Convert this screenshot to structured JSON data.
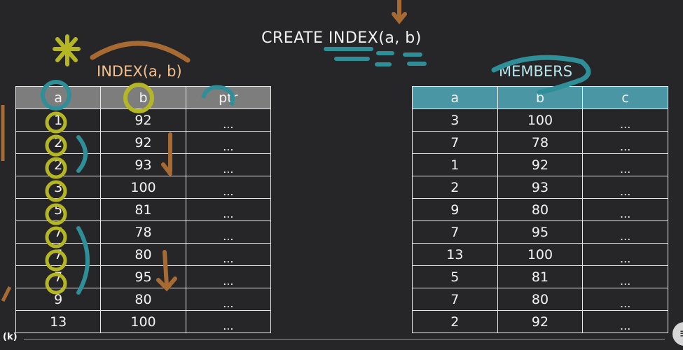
{
  "title": "CREATE INDEX(a, b)",
  "index_label": "INDEX(a, b)",
  "members_label": "MEMBERS",
  "index_table": {
    "headers": [
      "a",
      "b",
      "ptr"
    ],
    "rows": [
      [
        "1",
        "92",
        "..."
      ],
      [
        "2",
        "92",
        "..."
      ],
      [
        "2",
        "93",
        "..."
      ],
      [
        "3",
        "100",
        "..."
      ],
      [
        "5",
        "81",
        "..."
      ],
      [
        "7",
        "78",
        "..."
      ],
      [
        "7",
        "80",
        "..."
      ],
      [
        "7",
        "95",
        "..."
      ],
      [
        "9",
        "80",
        "..."
      ],
      [
        "13",
        "100",
        "..."
      ]
    ]
  },
  "members_table": {
    "headers": [
      "a",
      "b",
      "c"
    ],
    "rows": [
      [
        "3",
        "100",
        "..."
      ],
      [
        "7",
        "78",
        "..."
      ],
      [
        "1",
        "92",
        "..."
      ],
      [
        "2",
        "93",
        "..."
      ],
      [
        "9",
        "80",
        "..."
      ],
      [
        "7",
        "95",
        "..."
      ],
      [
        "13",
        "100",
        "..."
      ],
      [
        "5",
        "81",
        "..."
      ],
      [
        "7",
        "80",
        "..."
      ],
      [
        "2",
        "92",
        "..."
      ]
    ]
  },
  "player": {
    "corner_text": "(k)"
  },
  "colors": {
    "index_header": "#7d7d7d",
    "members_header": "#4a96a4",
    "annotation_yellow": "#b5b623",
    "annotation_teal": "#2f8f99",
    "annotation_orange": "#a86a33"
  }
}
